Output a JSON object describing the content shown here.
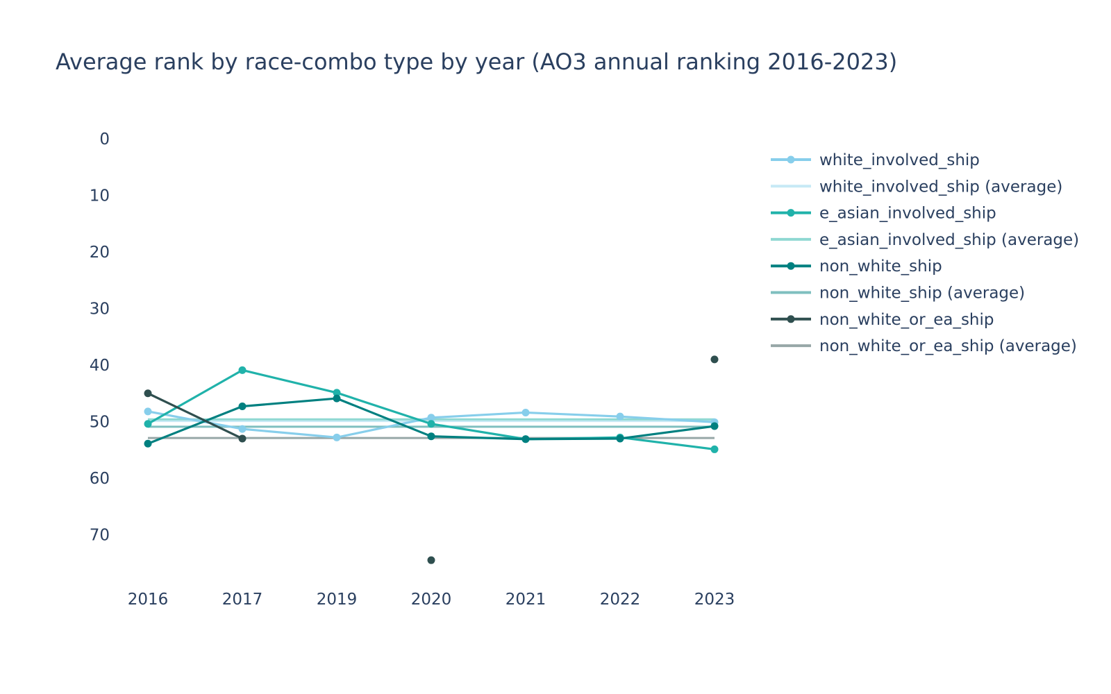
{
  "chart_data": {
    "type": "line",
    "title": "Average rank by race-combo type by year (AO3 annual ranking 2016-2023)",
    "xlabel": "",
    "ylabel": "",
    "categories": [
      "2016",
      "2017",
      "2019",
      "2020",
      "2021",
      "2022",
      "2023"
    ],
    "y_range": [
      -3,
      79
    ],
    "y_reversed": true,
    "y_ticks": [
      0,
      10,
      20,
      30,
      40,
      50,
      60,
      70
    ],
    "grid": false,
    "legend_position": "right",
    "series": [
      {
        "name": "white_involved_ship",
        "color": "#87CEEB",
        "mode": "lines+markers",
        "values": [
          48.2,
          51.3,
          52.8,
          49.3,
          48.4,
          49.1,
          50.1
        ]
      },
      {
        "name": "white_involved_ship (average)",
        "color": "#C7E9F5",
        "mode": "lines",
        "values": [
          49.9,
          49.9,
          49.9,
          49.9,
          49.9,
          49.9,
          49.9
        ]
      },
      {
        "name": "e_asian_involved_ship",
        "color": "#20B2AA",
        "mode": "lines+markers",
        "values": [
          50.4,
          40.9,
          44.9,
          50.4,
          53.1,
          52.8,
          54.9
        ]
      },
      {
        "name": "e_asian_involved_ship (average)",
        "color": "#8FD8D2",
        "mode": "lines",
        "values": [
          49.6,
          49.6,
          49.6,
          49.6,
          49.6,
          49.6,
          49.6
        ]
      },
      {
        "name": "non_white_ship",
        "color": "#008080",
        "mode": "lines+markers",
        "values": [
          53.9,
          47.3,
          45.9,
          52.6,
          53.1,
          53.0,
          50.8
        ]
      },
      {
        "name": "non_white_ship (average)",
        "color": "#7FBFBF",
        "mode": "lines",
        "values": [
          50.9,
          50.9,
          50.9,
          50.9,
          50.9,
          50.9,
          50.9
        ]
      },
      {
        "name": "non_white_or_ea_ship",
        "color": "#2F4F4F",
        "mode": "lines+markers",
        "values": [
          45.0,
          53.0,
          null,
          74.5,
          null,
          null,
          39.0
        ]
      },
      {
        "name": "non_white_or_ea_ship (average)",
        "color": "#97A7A7",
        "mode": "lines",
        "values": [
          52.9,
          52.9,
          52.9,
          52.9,
          52.9,
          52.9,
          52.9
        ]
      }
    ]
  }
}
